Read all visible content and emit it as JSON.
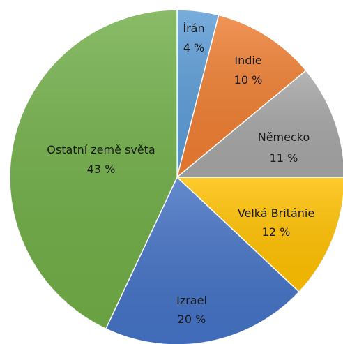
{
  "chart_data": {
    "type": "pie",
    "start_angle_deg": 0,
    "direction": "clockwise",
    "slices": [
      {
        "label": "Írán",
        "value": 4,
        "value_label": "4 %",
        "color": "#5b9bd5"
      },
      {
        "label": "Indie",
        "value": 10,
        "value_label": "10 %",
        "color": "#ed7d31"
      },
      {
        "label": "Německo",
        "value": 11,
        "value_label": "11 %",
        "color": "#a5a5a5"
      },
      {
        "label": "Velká Británie",
        "value": 12,
        "value_label": "12 %",
        "color": "#ffc000"
      },
      {
        "label": "Izrael",
        "value": 20,
        "value_label": "20 %",
        "color": "#4472c4"
      },
      {
        "label": "Ostatní země světa",
        "value": 43,
        "value_label": "43 %",
        "color": "#70ad47"
      }
    ],
    "legend": "none"
  }
}
